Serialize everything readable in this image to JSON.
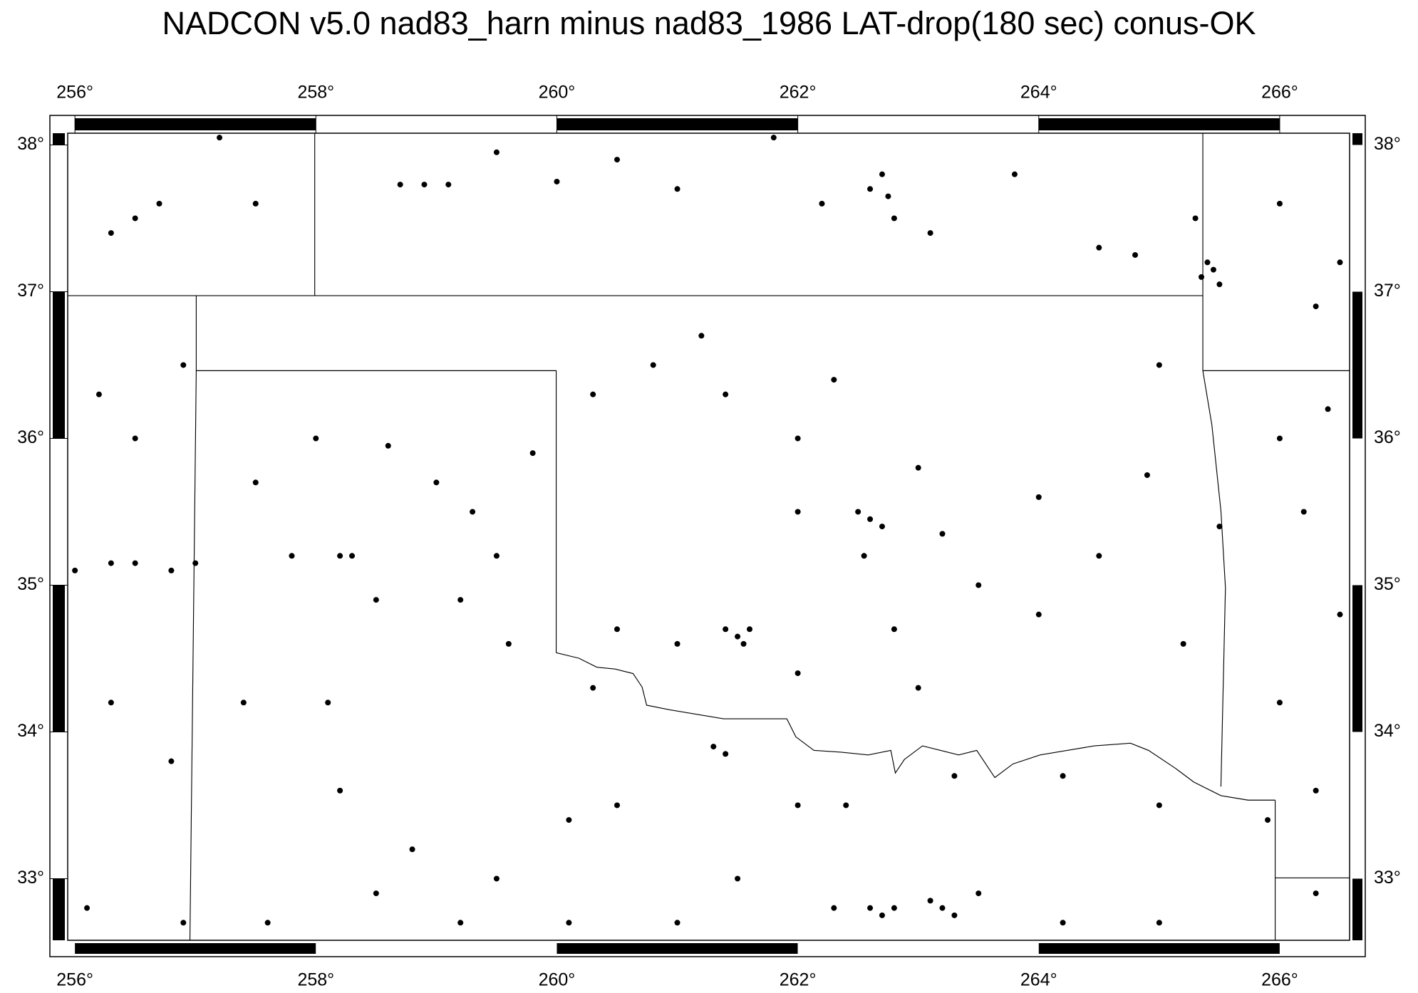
{
  "chart_data": {
    "type": "scatter",
    "title": "NADCON v5.0 nad83_harn minus nad83_1986 LAT-drop(180 sec) conus-OK",
    "color": "#000000",
    "xlim": [
      255.94,
      266.58
    ],
    "ylim": [
      32.58,
      38.08
    ],
    "xticks": [
      {
        "value": 256,
        "label": "256°"
      },
      {
        "value": 258,
        "label": "258°"
      },
      {
        "value": 260,
        "label": "260°"
      },
      {
        "value": 262,
        "label": "262°"
      },
      {
        "value": 264,
        "label": "264°"
      },
      {
        "value": 266,
        "label": "266°"
      }
    ],
    "yticks": [
      {
        "value": 33,
        "label": "33°"
      },
      {
        "value": 34,
        "label": "34°"
      },
      {
        "value": 35,
        "label": "35°"
      },
      {
        "value": 36,
        "label": "36°"
      },
      {
        "value": 37,
        "label": "37°"
      },
      {
        "value": 38,
        "label": "38°"
      }
    ],
    "x": [
      256.5,
      256.3,
      256.7,
      257.2,
      257.5,
      258.7,
      258.9,
      259.1,
      259.5,
      260.0,
      260.5,
      261.0,
      261.8,
      262.2,
      262.6,
      262.7,
      262.75,
      262.8,
      263.1,
      263.8,
      264.5,
      264.8,
      265.3,
      265.35,
      265.45,
      265.5,
      265.4,
      266.0,
      266.3,
      266.5,
      256.2,
      256.5,
      256.9,
      257.5,
      258.0,
      258.3,
      258.2,
      258.6,
      259.0,
      259.3,
      259.5,
      259.8,
      260.3,
      260.8,
      261.2,
      261.4,
      262.0,
      262.0,
      262.3,
      262.5,
      262.6,
      262.7,
      262.55,
      263.0,
      263.2,
      263.5,
      264.0,
      264.5,
      264.9,
      265.0,
      265.5,
      266.0,
      266.2,
      266.4,
      256.0,
      256.3,
      256.5,
      256.8,
      257.0,
      257.8,
      258.5,
      259.2,
      259.6,
      260.3,
      260.5,
      261.0,
      261.4,
      261.5,
      261.6,
      261.55,
      262.0,
      262.8,
      263.0,
      264.0,
      265.2,
      266.0,
      266.5,
      256.3,
      256.8,
      257.4,
      258.1,
      258.2,
      258.8,
      259.5,
      260.1,
      260.5,
      261.3,
      261.4,
      262.0,
      262.4,
      263.3,
      264.2,
      265.0,
      265.9,
      266.3,
      256.1,
      256.9,
      257.6,
      258.5,
      259.2,
      260.1,
      261.0,
      261.5,
      262.3,
      262.6,
      262.7,
      262.8,
      263.1,
      263.2,
      263.3,
      263.5,
      264.2,
      265.0,
      266.3
    ],
    "y": [
      37.5,
      37.4,
      37.6,
      38.05,
      37.6,
      37.73,
      37.73,
      37.73,
      37.95,
      37.75,
      37.9,
      37.7,
      38.05,
      37.6,
      37.7,
      37.8,
      37.65,
      37.5,
      37.4,
      37.8,
      37.3,
      37.25,
      37.5,
      37.1,
      37.15,
      37.05,
      37.2,
      37.6,
      36.9,
      37.2,
      36.3,
      36.0,
      36.5,
      35.7,
      36.0,
      35.2,
      35.2,
      35.95,
      35.7,
      35.5,
      35.2,
      35.9,
      36.3,
      36.5,
      36.7,
      36.3,
      36.0,
      35.5,
      36.4,
      35.5,
      35.45,
      35.4,
      35.2,
      35.8,
      35.35,
      35.0,
      35.6,
      35.2,
      35.75,
      36.5,
      35.4,
      36.0,
      35.5,
      36.2,
      35.1,
      35.15,
      35.15,
      35.1,
      35.15,
      35.2,
      34.9,
      34.9,
      34.6,
      34.3,
      34.7,
      34.6,
      34.7,
      34.65,
      34.7,
      34.6,
      34.4,
      34.7,
      34.3,
      34.8,
      34.6,
      34.2,
      34.8,
      34.2,
      33.8,
      34.2,
      34.2,
      33.6,
      33.2,
      33.0,
      33.4,
      33.5,
      33.9,
      33.85,
      33.5,
      33.5,
      33.7,
      33.7,
      33.5,
      33.4,
      33.6,
      32.8,
      32.7,
      32.7,
      32.9,
      32.7,
      32.7,
      32.7,
      33.0,
      32.8,
      32.8,
      32.75,
      32.8,
      32.85,
      32.8,
      32.75,
      32.9,
      32.7,
      32.7,
      32.9
    ]
  }
}
